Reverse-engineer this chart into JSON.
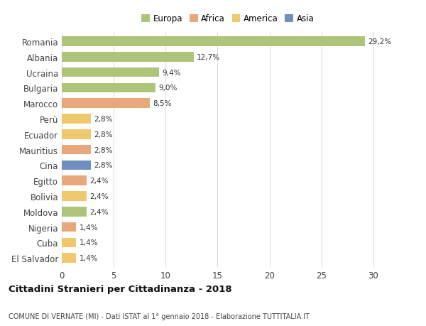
{
  "categories": [
    "Romania",
    "Albania",
    "Ucraina",
    "Bulgaria",
    "Marocco",
    "Perù",
    "Ecuador",
    "Mauritius",
    "Cina",
    "Egitto",
    "Bolivia",
    "Moldova",
    "Nigeria",
    "Cuba",
    "El Salvador"
  ],
  "values": [
    29.2,
    12.7,
    9.4,
    9.0,
    8.5,
    2.8,
    2.8,
    2.8,
    2.8,
    2.4,
    2.4,
    2.4,
    1.4,
    1.4,
    1.4
  ],
  "labels": [
    "29,2%",
    "12,7%",
    "9,4%",
    "9,0%",
    "8,5%",
    "2,8%",
    "2,8%",
    "2,8%",
    "2,8%",
    "2,4%",
    "2,4%",
    "2,4%",
    "1,4%",
    "1,4%",
    "1,4%"
  ],
  "colors": [
    "#adc579",
    "#adc579",
    "#adc579",
    "#adc579",
    "#e8a87c",
    "#f0c96e",
    "#f0c96e",
    "#e8a87c",
    "#6f8fbf",
    "#e8a87c",
    "#f0c96e",
    "#adc579",
    "#e8a87c",
    "#f0c96e",
    "#f0c96e"
  ],
  "continents": [
    "Europa",
    "Europa",
    "Europa",
    "Europa",
    "Africa",
    "America",
    "America",
    "Africa",
    "Asia",
    "Africa",
    "America",
    "Europa",
    "Africa",
    "America",
    "America"
  ],
  "legend_labels": [
    "Europa",
    "Africa",
    "America",
    "Asia"
  ],
  "legend_colors": [
    "#adc579",
    "#e8a87c",
    "#f0c96e",
    "#6f8fbf"
  ],
  "title": "Cittadini Stranieri per Cittadinanza - 2018",
  "subtitle": "COMUNE DI VERNATE (MI) - Dati ISTAT al 1° gennaio 2018 - Elaborazione TUTTITALIA.IT",
  "xlim": [
    0,
    32
  ],
  "xticks": [
    0,
    5,
    10,
    15,
    20,
    25,
    30
  ],
  "background_color": "#ffffff",
  "grid_color": "#dddddd"
}
